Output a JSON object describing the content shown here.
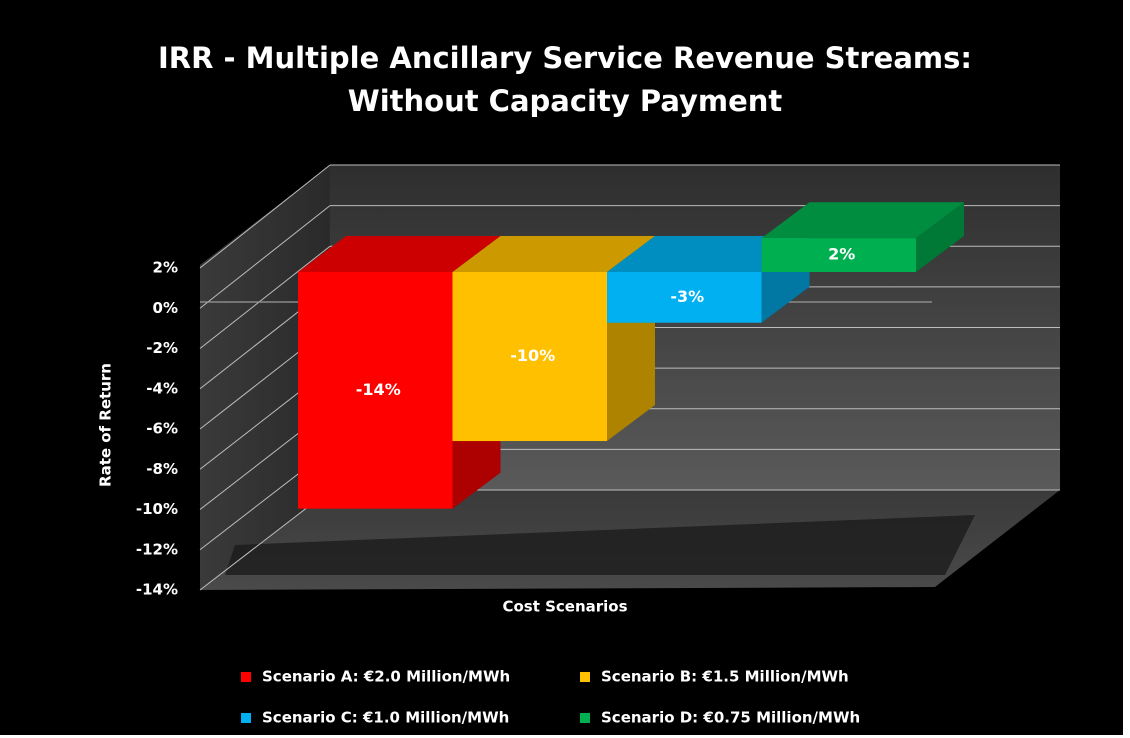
{
  "chart_data": {
    "type": "bar",
    "title": [
      "IRR - Multiple Ancillary Service Revenue Streams:",
      "Without Capacity Payment"
    ],
    "y_label": "Rate of Return",
    "x_label": "Cost Scenarios",
    "categories": [
      null
    ],
    "series": [
      {
        "name": "Scenario A: €2.0 Million/MWh",
        "color": "#ff0000",
        "values": [
          -14
        ],
        "value_labels": [
          "-14%"
        ]
      },
      {
        "name": "Scenario B: €1.5 Million/MWh",
        "color": "#ffc000",
        "values": [
          -10
        ],
        "value_labels": [
          "-10%"
        ]
      },
      {
        "name": "Scenario C: €1.0 Million/MWh",
        "color": "#00b0f0",
        "values": [
          -3
        ],
        "value_labels": [
          "-3%"
        ]
      },
      {
        "name": "Scenario D: €0.75 Million/MWh",
        "color": "#00b050",
        "values": [
          2
        ],
        "value_labels": [
          "2%"
        ]
      }
    ],
    "ylim": [
      -14,
      2
    ],
    "yticks": [
      {
        "value": 2,
        "label": "2%"
      },
      {
        "value": 0,
        "label": "0%"
      },
      {
        "value": -2,
        "label": "-2%"
      },
      {
        "value": -4,
        "label": "-4%"
      },
      {
        "value": -6,
        "label": "-6%"
      },
      {
        "value": -8,
        "label": "-8%"
      },
      {
        "value": -10,
        "label": "-10%"
      },
      {
        "value": -12,
        "label": "-12%"
      },
      {
        "value": -14,
        "label": "-14%"
      }
    ],
    "grid": true,
    "legend": "bottom"
  }
}
